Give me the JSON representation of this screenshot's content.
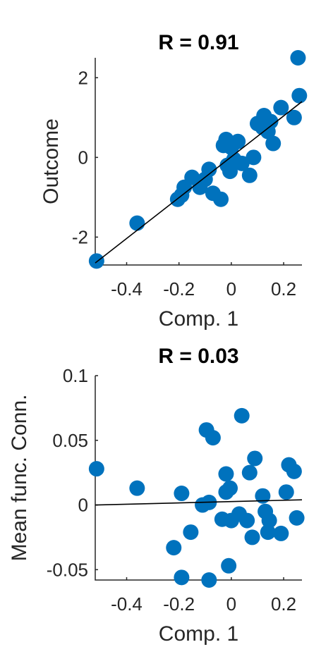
{
  "chart_data": [
    {
      "type": "scatter",
      "title": "R = 0.91",
      "xlabel": "Comp. 1",
      "ylabel": "Outcome",
      "xlim": [
        -0.52,
        0.27
      ],
      "ylim": [
        -2.7,
        2.5
      ],
      "xticks": [
        -0.4,
        -0.2,
        0,
        0.2
      ],
      "xtick_labels": [
        "-0.4",
        "-0.2",
        "0",
        "0.2"
      ],
      "yticks": [
        -2,
        0,
        2
      ],
      "ytick_labels": [
        "-2",
        "0",
        "2"
      ],
      "color": "#0072BD",
      "fit_line": {
        "x": [
          -0.52,
          0.27
        ],
        "y": [
          -2.65,
          1.4
        ]
      },
      "points": [
        {
          "x": -0.515,
          "y": -2.6
        },
        {
          "x": -0.36,
          "y": -1.65
        },
        {
          "x": -0.205,
          "y": -1.05
        },
        {
          "x": -0.19,
          "y": -0.95
        },
        {
          "x": -0.18,
          "y": -0.75
        },
        {
          "x": -0.15,
          "y": -0.5
        },
        {
          "x": -0.12,
          "y": -0.75
        },
        {
          "x": -0.1,
          "y": -0.55
        },
        {
          "x": -0.085,
          "y": -0.3
        },
        {
          "x": -0.07,
          "y": -0.9
        },
        {
          "x": -0.04,
          "y": -1.05
        },
        {
          "x": -0.03,
          "y": 0.3
        },
        {
          "x": -0.02,
          "y": 0.45
        },
        {
          "x": -0.015,
          "y": -0.2
        },
        {
          "x": -0.005,
          "y": -0.35
        },
        {
          "x": 0.0,
          "y": 0.25
        },
        {
          "x": 0.01,
          "y": -0.05
        },
        {
          "x": 0.025,
          "y": 0.4
        },
        {
          "x": 0.04,
          "y": -0.15
        },
        {
          "x": 0.07,
          "y": -0.45
        },
        {
          "x": 0.085,
          "y": 0.0
        },
        {
          "x": 0.1,
          "y": 0.85
        },
        {
          "x": 0.12,
          "y": 0.75
        },
        {
          "x": 0.125,
          "y": 1.05
        },
        {
          "x": 0.14,
          "y": 0.65
        },
        {
          "x": 0.16,
          "y": 0.35
        },
        {
          "x": 0.15,
          "y": 0.9
        },
        {
          "x": 0.19,
          "y": 1.25
        },
        {
          "x": 0.24,
          "y": 1.0
        },
        {
          "x": 0.26,
          "y": 1.55
        },
        {
          "x": 0.255,
          "y": 2.5
        }
      ]
    },
    {
      "type": "scatter",
      "title": "R = 0.03",
      "xlabel": "Comp. 1",
      "ylabel": "Mean func. Conn.",
      "xlim": [
        -0.52,
        0.27
      ],
      "ylim": [
        -0.058,
        0.1
      ],
      "xticks": [
        -0.4,
        -0.2,
        0,
        0.2
      ],
      "xtick_labels": [
        "-0.4",
        "-0.2",
        "0",
        "0.2"
      ],
      "yticks": [
        -0.05,
        0,
        0.05,
        0.1
      ],
      "ytick_labels": [
        "-0.05",
        "0",
        "0.05",
        "0.1"
      ],
      "color": "#0072BD",
      "fit_line": {
        "x": [
          -0.52,
          0.27
        ],
        "y": [
          0.0,
          0.004
        ]
      },
      "points": [
        {
          "x": -0.515,
          "y": 0.028
        },
        {
          "x": -0.36,
          "y": 0.013
        },
        {
          "x": -0.22,
          "y": -0.033
        },
        {
          "x": -0.19,
          "y": -0.056
        },
        {
          "x": -0.19,
          "y": 0.009
        },
        {
          "x": -0.155,
          "y": -0.021
        },
        {
          "x": -0.11,
          "y": 0.0
        },
        {
          "x": -0.095,
          "y": 0.058
        },
        {
          "x": -0.085,
          "y": -0.058
        },
        {
          "x": -0.085,
          "y": 0.002
        },
        {
          "x": -0.07,
          "y": 0.052
        },
        {
          "x": -0.035,
          "y": -0.011
        },
        {
          "x": -0.02,
          "y": 0.01
        },
        {
          "x": -0.02,
          "y": 0.024
        },
        {
          "x": -0.01,
          "y": -0.047
        },
        {
          "x": -0.005,
          "y": 0.013
        },
        {
          "x": 0.0,
          "y": -0.012
        },
        {
          "x": 0.03,
          "y": -0.007
        },
        {
          "x": 0.04,
          "y": 0.069
        },
        {
          "x": 0.06,
          "y": -0.012
        },
        {
          "x": 0.07,
          "y": 0.025
        },
        {
          "x": 0.08,
          "y": -0.025
        },
        {
          "x": 0.09,
          "y": 0.036
        },
        {
          "x": 0.12,
          "y": 0.007
        },
        {
          "x": 0.13,
          "y": -0.005
        },
        {
          "x": 0.14,
          "y": -0.021
        },
        {
          "x": 0.145,
          "y": -0.012
        },
        {
          "x": 0.19,
          "y": -0.022
        },
        {
          "x": 0.21,
          "y": 0.01
        },
        {
          "x": 0.22,
          "y": 0.031
        },
        {
          "x": 0.24,
          "y": 0.026
        },
        {
          "x": 0.25,
          "y": -0.01
        }
      ]
    }
  ]
}
